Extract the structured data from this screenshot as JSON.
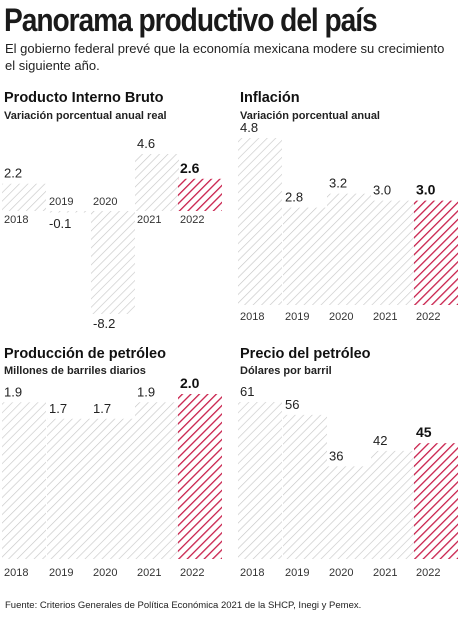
{
  "header": {
    "title": "Panorama productivo del país",
    "subtitle": "El gobierno federal prevé que la economía mexicana modere su crecimiento el siguiente año."
  },
  "source": "Fuente: Criterios Generales de Política Económica 2021 de la SHCP, Inegi y Pemex.",
  "colors": {
    "bar_hatch": "#c7c7c7",
    "highlight_hatch": "#c81e4a",
    "text": "#1a1a1a"
  },
  "chart_data": [
    {
      "type": "bar",
      "title": "Producto Interno Bruto",
      "subtitle": "Variación porcentual anual real",
      "categories": [
        "2018",
        "2019",
        "2020",
        "2021",
        "2022"
      ],
      "values": [
        2.2,
        -0.1,
        -8.2,
        4.6,
        2.6
      ],
      "value_labels": [
        "2.2",
        "-0.1",
        "-8.2",
        "4.6",
        "2.6"
      ],
      "highlight_index": 4,
      "ylim": [
        -8.2,
        4.6
      ]
    },
    {
      "type": "bar",
      "title": "Inflación",
      "subtitle": "Variación porcentual anual",
      "categories": [
        "2018",
        "2019",
        "2020",
        "2021",
        "2022"
      ],
      "values": [
        4.8,
        2.8,
        3.2,
        3.0,
        3.0
      ],
      "value_labels": [
        "4.8",
        "2.8",
        "3.2",
        "3.0",
        "3.0"
      ],
      "highlight_index": 4,
      "ylim": [
        0,
        4.8
      ]
    },
    {
      "type": "bar",
      "title": "Producción de petróleo",
      "subtitle": "Millones de barriles diarios",
      "categories": [
        "2018",
        "2019",
        "2020",
        "2021",
        "2022"
      ],
      "values": [
        1.9,
        1.7,
        1.7,
        1.9,
        2.0
      ],
      "value_labels": [
        "1.9",
        "1.7",
        "1.7",
        "1.9",
        "2.0"
      ],
      "highlight_index": 4,
      "ylim": [
        0,
        2.0
      ]
    },
    {
      "type": "bar",
      "title": "Precio del petróleo",
      "subtitle": "Dólares por barril",
      "categories": [
        "2018",
        "2019",
        "2020",
        "2021",
        "2022"
      ],
      "values": [
        61,
        56,
        36,
        42,
        45
      ],
      "value_labels": [
        "61",
        "56",
        "36",
        "42",
        "45"
      ],
      "highlight_index": 4,
      "ylim": [
        0,
        61
      ]
    }
  ]
}
